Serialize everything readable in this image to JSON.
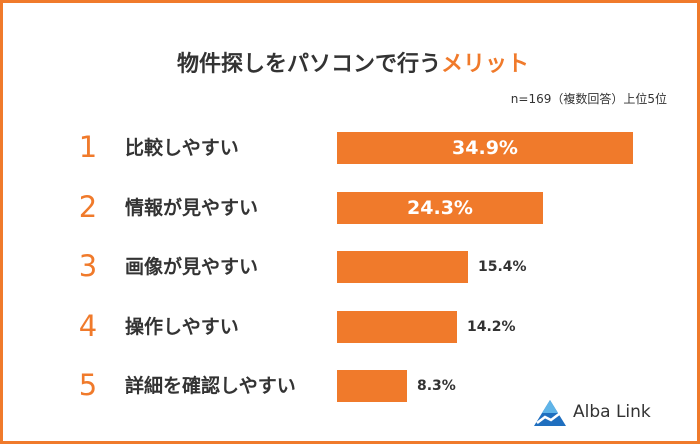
{
  "header": {
    "title_main": "物件探しをパソコンで行う",
    "title_accent": "メリット",
    "note": "n=169（複数回答）上位5位"
  },
  "chart_data": {
    "type": "bar",
    "orientation": "horizontal",
    "title": "物件探しをパソコンで行うメリット",
    "subtitle": "n=169（複数回答）上位5位",
    "ranks": [
      "1",
      "2",
      "3",
      "4",
      "5"
    ],
    "categories": [
      "比較しやすい",
      "情報が見やすい",
      "画像が見やすい",
      "操作しやすい",
      "詳細を確認しやすい"
    ],
    "values": [
      34.9,
      24.3,
      15.4,
      14.2,
      8.3
    ],
    "value_labels": [
      "34.9%",
      "24.3%",
      "15.4%",
      "14.2%",
      "8.3%"
    ],
    "unit": "%",
    "color": "#f07a2b",
    "grid": false,
    "legend": "none"
  },
  "brand": {
    "logo_icon": "alba-link-logo-icon",
    "name": "Alba Link"
  }
}
